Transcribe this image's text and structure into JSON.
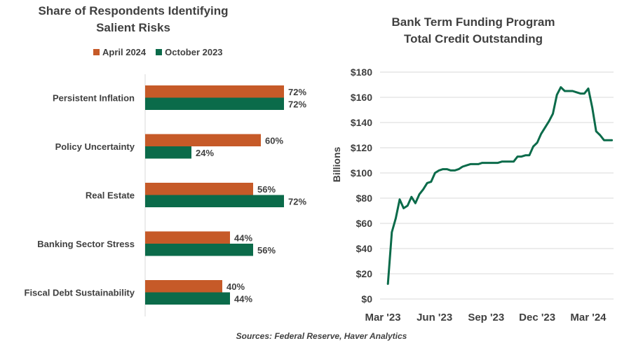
{
  "chart_data": [
    {
      "type": "bar",
      "orientation": "horizontal",
      "title": "Share of Respondents Identifying Salient Risks",
      "title_lines": [
        "Share of Respondents Identifying",
        "Salient Risks"
      ],
      "categories": [
        "Persistent Inflation",
        "Policy Uncertainty",
        "Real Estate",
        "Banking Sector Stress",
        "Fiscal Debt Sustainability"
      ],
      "series": [
        {
          "name": "April 2024",
          "values": [
            72,
            60,
            56,
            44,
            40
          ],
          "color": "#C65A28"
        },
        {
          "name": "October 2023",
          "values": [
            72,
            24,
            72,
            56,
            44
          ],
          "color": "#0B6B4A"
        }
      ],
      "value_format": "percent",
      "legend": "top",
      "grid": false
    },
    {
      "type": "line",
      "title": "Bank Term Funding Program Total Credit Outstanding",
      "title_lines": [
        "Bank Term Funding Program",
        "Total Credit Outstanding"
      ],
      "ylabel": "Billions",
      "xlabel": "",
      "ylim": [
        0,
        180
      ],
      "y_ticks": [
        "$0",
        "$20",
        "$40",
        "$60",
        "$80",
        "$100",
        "$120",
        "$140",
        "$160",
        "$180"
      ],
      "x_tick_labels": [
        "Mar '23",
        "Jun '23",
        "Sep '23",
        "Dec '23",
        "Mar '24"
      ],
      "x_tick_dates": [
        "2023-03-01",
        "2023-06-01",
        "2023-09-01",
        "2023-12-01",
        "2024-03-01"
      ],
      "grid": true,
      "series": [
        {
          "color": "#0B6B4A",
          "x": [
            "2023-03-15",
            "2023-03-22",
            "2023-03-29",
            "2023-04-05",
            "2023-04-12",
            "2023-04-19",
            "2023-04-26",
            "2023-05-03",
            "2023-05-10",
            "2023-05-17",
            "2023-05-24",
            "2023-05-31",
            "2023-06-07",
            "2023-06-14",
            "2023-06-21",
            "2023-06-28",
            "2023-07-05",
            "2023-07-12",
            "2023-07-19",
            "2023-07-26",
            "2023-08-02",
            "2023-08-09",
            "2023-08-16",
            "2023-08-23",
            "2023-08-30",
            "2023-09-06",
            "2023-09-13",
            "2023-09-20",
            "2023-09-27",
            "2023-10-04",
            "2023-10-11",
            "2023-10-18",
            "2023-10-25",
            "2023-11-01",
            "2023-11-08",
            "2023-11-15",
            "2023-11-22",
            "2023-11-29",
            "2023-12-06",
            "2023-12-13",
            "2023-12-20",
            "2023-12-27",
            "2024-01-03",
            "2024-01-10",
            "2024-01-17",
            "2024-01-24",
            "2024-01-31",
            "2024-02-07",
            "2024-02-14",
            "2024-02-21",
            "2024-02-28",
            "2024-03-06",
            "2024-03-13",
            "2024-03-20",
            "2024-03-27",
            "2024-04-03",
            "2024-04-10",
            "2024-04-17"
          ],
          "values": [
            12,
            53,
            64,
            79,
            72,
            74,
            81,
            76,
            83,
            87,
            92,
            93,
            100,
            102,
            103,
            103,
            102,
            102,
            103,
            105,
            106,
            107,
            107,
            107,
            108,
            108,
            108,
            108,
            108,
            109,
            109,
            109,
            109,
            113,
            113,
            114,
            114,
            121,
            124,
            131,
            136,
            141,
            147,
            162,
            168,
            165,
            165,
            165,
            164,
            163,
            163,
            167,
            152,
            133,
            130,
            126,
            126,
            126
          ]
        }
      ]
    }
  ],
  "source": "Sources: Federal Reserve, Haver Analytics"
}
